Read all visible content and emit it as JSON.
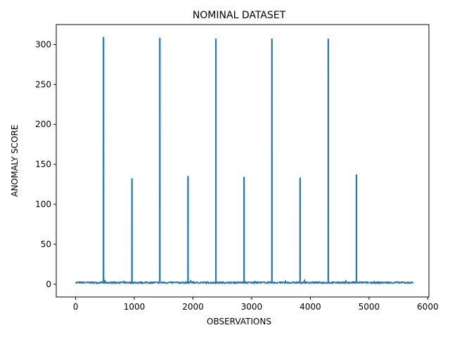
{
  "chart_data": {
    "type": "line",
    "title": "NOMINAL DATASET",
    "xlabel": "OBSERVATIONS",
    "ylabel": "ANOMALY SCORE",
    "xlim": [
      -330,
      6020
    ],
    "ylim": [
      -16,
      325
    ],
    "xticks": [
      0,
      1000,
      2000,
      3000,
      4000,
      5000,
      6000
    ],
    "yticks": [
      0,
      50,
      100,
      150,
      200,
      250,
      300
    ],
    "grid": false,
    "legend": "none",
    "series_color": "#1f77b4",
    "x_range": [
      0,
      5750
    ],
    "baseline": 1.5,
    "spikes": [
      {
        "x": 475,
        "y": 309
      },
      {
        "x": 960,
        "y": 132
      },
      {
        "x": 1435,
        "y": 308
      },
      {
        "x": 1915,
        "y": 135
      },
      {
        "x": 2390,
        "y": 307
      },
      {
        "x": 2870,
        "y": 134
      },
      {
        "x": 3345,
        "y": 307
      },
      {
        "x": 3825,
        "y": 133
      },
      {
        "x": 4305,
        "y": 307
      },
      {
        "x": 4785,
        "y": 137
      }
    ]
  }
}
